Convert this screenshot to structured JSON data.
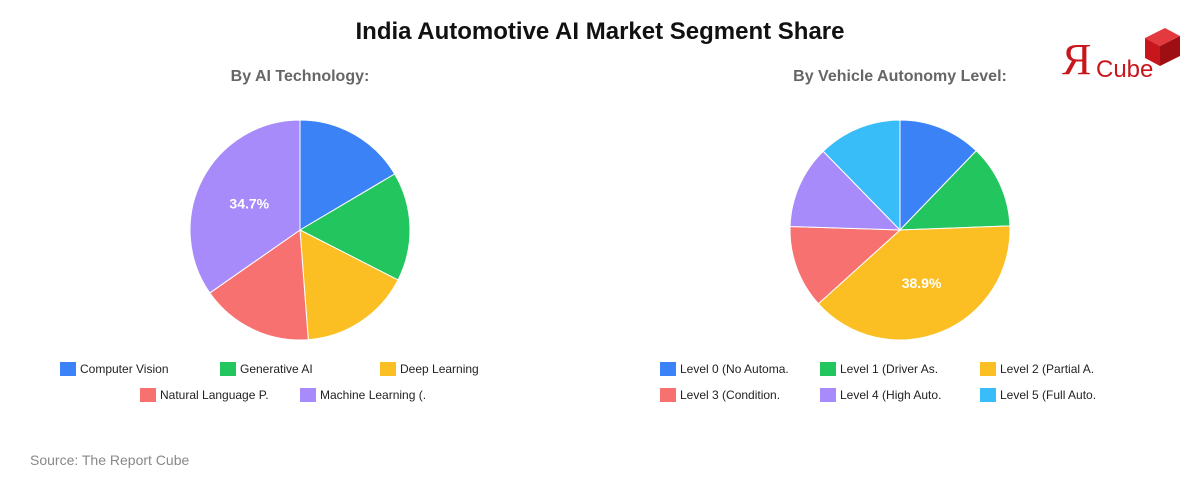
{
  "title": "India Automotive AI Market Segment Share",
  "source": "Source: The Report Cube",
  "logo": {
    "glyph": "Я",
    "text": "Cube",
    "color": "#c8161d"
  },
  "chart_data": [
    {
      "type": "pie",
      "title": "By AI Technology:",
      "categories": [
        "Computer Vision",
        "Generative AI",
        "Deep Learning",
        "Natural Language P.",
        "Machine Learning (."
      ],
      "values": [
        16.5,
        16.0,
        16.3,
        16.5,
        34.7
      ],
      "colors": [
        "#3b82f6",
        "#22c55e",
        "#fbbf24",
        "#f87171",
        "#a78bfa"
      ],
      "data_labels": [
        "",
        "",
        "",
        "",
        "34.7%"
      ],
      "legend_position": "bottom"
    },
    {
      "type": "pie",
      "title": "By Vehicle Autonomy Level:",
      "categories": [
        "Level 0 (No Automa.",
        "Level 1 (Driver As.",
        "Level 2 (Partial A.",
        "Level 3 (Condition.",
        "Level 4 (High Auto.",
        "Level 5 (Full Auto."
      ],
      "values": [
        12.2,
        12.2,
        38.9,
        12.2,
        12.2,
        12.3
      ],
      "colors": [
        "#3b82f6",
        "#22c55e",
        "#fbbf24",
        "#f87171",
        "#a78bfa",
        "#38bdf8"
      ],
      "data_labels": [
        "",
        "",
        "38.9%",
        "",
        "",
        ""
      ],
      "legend_position": "bottom"
    }
  ]
}
